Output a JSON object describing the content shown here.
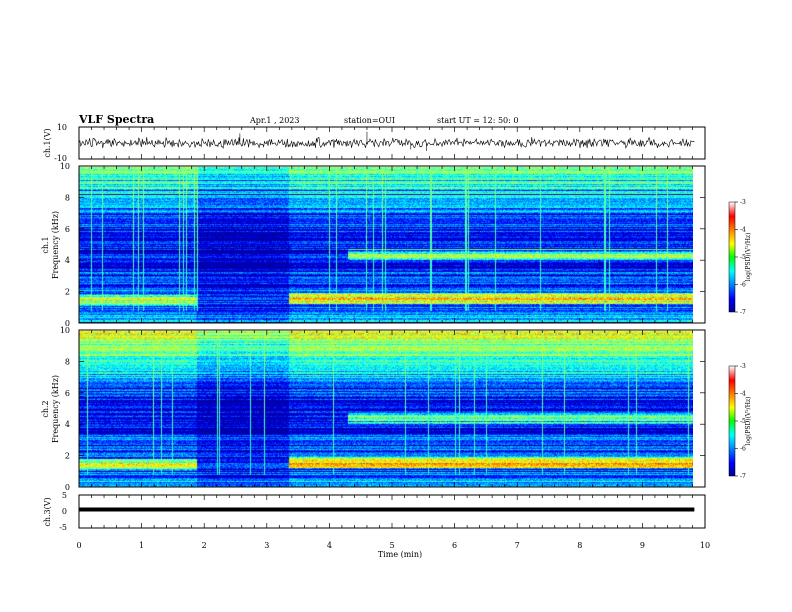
{
  "chart_data": [
    {
      "id": "header",
      "type": "table",
      "title": "VLF Spectra",
      "date_label": "Apr.1  , 2023",
      "station_label": "station=OUI",
      "start_label": "start  UT  =   12: 50: 0"
    },
    {
      "id": "ch1-waveform",
      "type": "line",
      "ylabel": "ch.1(V)",
      "ylim": [
        -10,
        10
      ],
      "yticks": [
        "10",
        "-10"
      ],
      "x_range_min": [
        0,
        9.83
      ],
      "baseline_V": 0,
      "noise_amplitude_V": 2.5,
      "spikes": [
        {
          "t": 2.57,
          "v": 6
        },
        {
          "t": 4.6,
          "v": 7
        },
        {
          "t": 5.3,
          "v": -4
        },
        {
          "t": 5.55,
          "v": -5
        }
      ]
    },
    {
      "id": "ch1-spectrogram",
      "type": "heatmap",
      "ylabel": "ch.1\nFrequency  (kHz)",
      "ylim": [
        0,
        10
      ],
      "yticks": [
        "0",
        "2",
        "4",
        "6",
        "8",
        "10"
      ],
      "x_range_min": [
        0,
        9.83
      ],
      "colorbar_label": "log(PSD)(V²/Hz)",
      "colorbar_range": [
        -7,
        -3
      ],
      "colorbar_ticks": [
        "-3",
        "-4",
        "-5",
        "-6",
        "-7"
      ],
      "emission_bands": [
        {
          "f_kHz": 1.5,
          "t_start": 0,
          "t_end": 1.88,
          "log_psd": -4.8
        },
        {
          "f_kHz": 1.6,
          "t_start": 3.35,
          "t_end": 9.83,
          "log_psd": -4.4
        },
        {
          "f_kHz": 4.4,
          "t_start": 4.3,
          "t_end": 9.83,
          "log_psd": -5.0
        }
      ],
      "quiet_intervals": [
        {
          "t_start": 1.88,
          "t_end": 3.35
        }
      ]
    },
    {
      "id": "ch2-spectrogram",
      "type": "heatmap",
      "ylabel": "ch.2\nFrequency  (kHz)",
      "ylim": [
        0,
        10
      ],
      "yticks": [
        "0",
        "2",
        "4",
        "6",
        "8",
        "10"
      ],
      "x_range_min": [
        0,
        9.83
      ],
      "colorbar_label": "log(PSD)(V²/Hz)",
      "colorbar_range": [
        -7,
        -3
      ],
      "colorbar_ticks": [
        "-3",
        "-4",
        "-5",
        "-6",
        "-7"
      ],
      "emission_bands": [
        {
          "f_kHz": 1.5,
          "t_start": 0,
          "t_end": 1.88,
          "log_psd": -4.7
        },
        {
          "f_kHz": 1.6,
          "t_start": 3.35,
          "t_end": 9.83,
          "log_psd": -4.2
        },
        {
          "f_kHz": 4.4,
          "t_start": 4.3,
          "t_end": 9.83,
          "log_psd": -5.0
        }
      ],
      "quiet_intervals": [
        {
          "t_start": 1.88,
          "t_end": 3.35
        }
      ]
    },
    {
      "id": "ch3-waveform",
      "type": "line",
      "ylabel": "ch.3(V)",
      "ylim": [
        -5,
        5
      ],
      "yticks": [
        "5",
        "0",
        "-5"
      ],
      "x_range_min": [
        0,
        9.83
      ],
      "baseline_V": 0
    },
    {
      "id": "time-axis",
      "type": "line",
      "xlabel": "Time  (min)",
      "xlim": [
        0,
        10
      ],
      "xticks": [
        "0",
        "1",
        "2",
        "3",
        "4",
        "5",
        "6",
        "7",
        "8",
        "9",
        "10"
      ]
    }
  ]
}
